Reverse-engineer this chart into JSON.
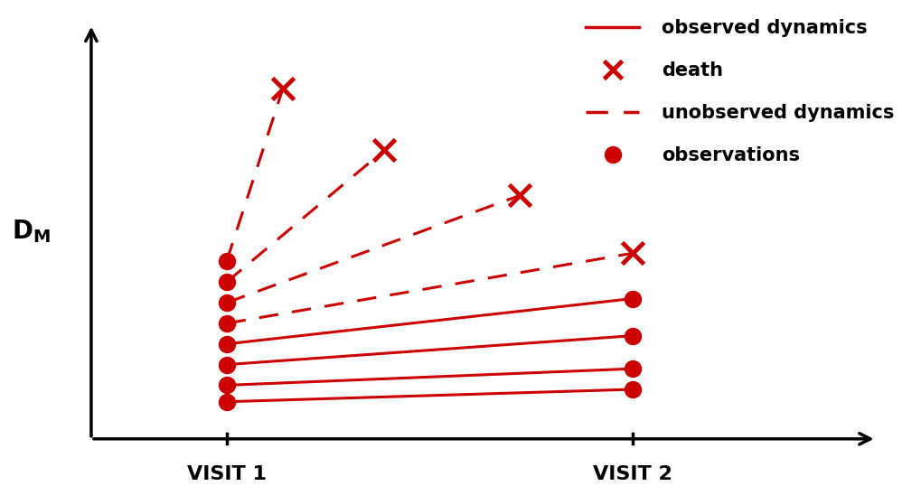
{
  "color": "#CC0000",
  "visit1_x": 1.0,
  "visit2_x": 2.8,
  "solid_lines": [
    {
      "v1_y": 1.05,
      "v2_y": 1.2
    },
    {
      "v1_y": 1.25,
      "v2_y": 1.45
    },
    {
      "v1_y": 1.5,
      "v2_y": 1.85
    },
    {
      "v1_y": 1.75,
      "v2_y": 2.3
    }
  ],
  "dashed_lines": [
    {
      "v1_y": 2.0,
      "death_x": 2.8,
      "death_y": 2.85
    },
    {
      "v1_y": 2.25,
      "death_x": 2.3,
      "death_y": 3.55
    },
    {
      "v1_y": 2.5,
      "death_x": 1.7,
      "death_y": 4.1
    },
    {
      "v1_y": 2.75,
      "death_x": 1.25,
      "death_y": 4.85
    }
  ],
  "xlabel_visit1": "VISIT 1",
  "xlabel_visit2": "VISIT 2",
  "xlim": [
    0.2,
    4.0
  ],
  "ylim": [
    0.5,
    5.8
  ],
  "axis_origin_x": 0.4,
  "axis_origin_y": 0.6,
  "visit1_tick": 1.0,
  "visit2_tick": 2.8,
  "legend_items": [
    "observed dynamics",
    "death",
    "unobserved dynamics",
    "observations"
  ]
}
